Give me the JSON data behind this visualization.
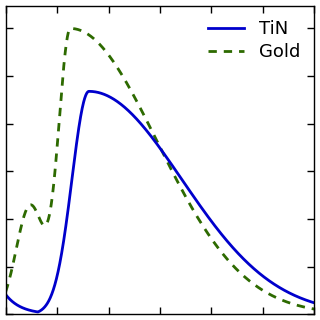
{
  "tin_color": "#0000cc",
  "gold_color": "#2d6a00",
  "tin_label": "TiN",
  "gold_label": "Gold",
  "tin_linewidth": 2.0,
  "gold_linewidth": 2.0,
  "legend_fontsize": 13,
  "background_color": "#ffffff",
  "x_min": 0.0,
  "x_max": 1.0,
  "y_min": 0.0,
  "y_max": 1.08,
  "n_xticks": 6,
  "n_yticks": 6
}
